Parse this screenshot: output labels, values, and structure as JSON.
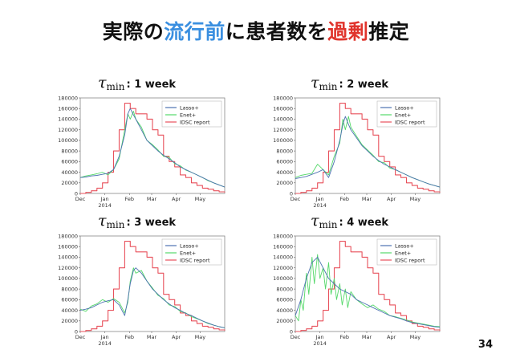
{
  "slide": {
    "title": {
      "part1": "実際の",
      "part2": "流行前",
      "part3": "に患者数を",
      "part4": "過剰",
      "part5": "推定"
    },
    "page_number": "34",
    "symbol": "τ",
    "subscript": "min"
  },
  "colors": {
    "lasso": "#4c72b0",
    "enet": "#55d86a",
    "idsc": "#e8505b",
    "title_blue": "#3a8fe0",
    "title_red": "#e0342c"
  },
  "chart_data": [
    {
      "type": "line",
      "panel_label": ": 1 week",
      "x_tick_labels": [
        "Dec",
        "Jan\n2014",
        "Feb",
        "Mar",
        "Apr",
        "May"
      ],
      "x_range": [
        "2013-12-01",
        "2014-05-31"
      ],
      "y_ticks": [
        0,
        20000,
        40000,
        60000,
        80000,
        100000,
        120000,
        140000,
        160000,
        180000
      ],
      "ylim": [
        0,
        180000
      ],
      "legend": [
        "Lasso+",
        "Enet+",
        "IDSC report"
      ],
      "legend_position": "top-right",
      "series": [
        {
          "name": "Lasso+",
          "x_days": [
            0,
            7,
            14,
            21,
            28,
            35,
            42,
            49,
            56,
            60,
            63,
            67,
            70,
            77,
            84,
            91,
            98,
            105,
            112,
            119,
            126,
            133,
            140,
            147,
            154,
            161,
            168,
            175,
            182
          ],
          "values": [
            30000,
            31000,
            33000,
            34000,
            36000,
            38000,
            45000,
            70000,
            110000,
            150000,
            160000,
            148000,
            140000,
            120000,
            100000,
            90000,
            80000,
            72000,
            65000,
            58000,
            50000,
            45000,
            40000,
            35000,
            30000,
            25000,
            20000,
            16000,
            12000
          ]
        },
        {
          "name": "Enet+",
          "x_days": [
            0,
            7,
            14,
            21,
            28,
            35,
            42,
            49,
            56,
            60,
            63,
            67,
            70,
            77,
            84,
            91,
            98,
            105,
            112,
            119,
            126,
            133,
            140,
            147,
            154,
            161,
            168,
            175,
            182
          ],
          "values": [
            30000,
            33000,
            35000,
            37000,
            40000,
            35000,
            45000,
            65000,
            120000,
            150000,
            140000,
            155000,
            140000,
            125000,
            100000,
            92000,
            82000,
            70000,
            68000,
            56000,
            52000,
            44000,
            40000,
            35000,
            30000,
            24000,
            20000,
            16000,
            12000
          ]
        },
        {
          "name": "IDSC report",
          "x_days": [
            0,
            7,
            14,
            21,
            28,
            35,
            42,
            49,
            56,
            63,
            70,
            77,
            84,
            91,
            98,
            105,
            112,
            119,
            126,
            133,
            140,
            147,
            154,
            161,
            168,
            175,
            182
          ],
          "values": [
            0,
            2000,
            5000,
            10000,
            20000,
            40000,
            80000,
            120000,
            170000,
            160000,
            150000,
            150000,
            140000,
            120000,
            110000,
            70000,
            60000,
            50000,
            35000,
            30000,
            20000,
            15000,
            10000,
            8000,
            5000,
            3000,
            2000
          ]
        }
      ]
    },
    {
      "type": "line",
      "panel_label": ": 2 week",
      "x_tick_labels": [
        "Dec",
        "Jan\n2014",
        "Feb",
        "Mar",
        "Apr",
        "May"
      ],
      "x_range": [
        "2013-12-01",
        "2014-05-31"
      ],
      "y_ticks": [
        0,
        20000,
        40000,
        60000,
        80000,
        100000,
        120000,
        140000,
        160000,
        180000
      ],
      "ylim": [
        0,
        180000
      ],
      "legend": [
        "Lasso+",
        "Enet+",
        "IDSC report"
      ],
      "legend_position": "top-right",
      "series": [
        {
          "name": "Lasso+",
          "x_days": [
            0,
            7,
            14,
            21,
            28,
            35,
            42,
            49,
            56,
            60,
            63,
            67,
            70,
            77,
            84,
            91,
            98,
            105,
            112,
            119,
            126,
            133,
            140,
            147,
            154,
            161,
            168,
            175,
            182
          ],
          "values": [
            28000,
            30000,
            32000,
            36000,
            40000,
            45000,
            30000,
            60000,
            100000,
            130000,
            145000,
            130000,
            120000,
            105000,
            90000,
            80000,
            70000,
            62000,
            55000,
            50000,
            45000,
            40000,
            35000,
            30000,
            26000,
            22000,
            18000,
            15000,
            12000
          ]
        },
        {
          "name": "Enet+",
          "x_days": [
            0,
            7,
            14,
            21,
            28,
            35,
            42,
            49,
            56,
            60,
            63,
            67,
            70,
            77,
            84,
            91,
            98,
            105,
            112,
            119,
            126,
            133,
            140,
            147,
            154,
            161,
            168,
            175,
            182
          ],
          "values": [
            30000,
            34000,
            36000,
            38000,
            55000,
            45000,
            35000,
            70000,
            95000,
            140000,
            120000,
            145000,
            125000,
            108000,
            92000,
            82000,
            72000,
            60000,
            58000,
            48000,
            45000,
            40000,
            35000,
            30000,
            26000,
            22000,
            18000,
            15000,
            12000
          ]
        },
        {
          "name": "IDSC report",
          "x_days": [
            0,
            7,
            14,
            21,
            28,
            35,
            42,
            49,
            56,
            63,
            70,
            77,
            84,
            91,
            98,
            105,
            112,
            119,
            126,
            133,
            140,
            147,
            154,
            161,
            168,
            175,
            182
          ],
          "values": [
            0,
            2000,
            5000,
            10000,
            20000,
            40000,
            80000,
            120000,
            170000,
            160000,
            150000,
            150000,
            140000,
            120000,
            110000,
            70000,
            60000,
            50000,
            35000,
            30000,
            20000,
            15000,
            10000,
            8000,
            5000,
            3000,
            2000
          ]
        }
      ]
    },
    {
      "type": "line",
      "panel_label": ": 3 week",
      "x_tick_labels": [
        "Dec",
        "Jan\n2014",
        "Feb",
        "Mar",
        "Apr",
        "May"
      ],
      "x_range": [
        "2013-12-01",
        "2014-05-31"
      ],
      "y_ticks": [
        0,
        20000,
        40000,
        60000,
        80000,
        100000,
        120000,
        140000,
        160000,
        180000
      ],
      "ylim": [
        0,
        180000
      ],
      "legend": [
        "Lasso+",
        "Enet+",
        "IDSC report"
      ],
      "legend_position": "top-right",
      "series": [
        {
          "name": "Lasso+",
          "x_days": [
            0,
            7,
            14,
            21,
            28,
            35,
            42,
            49,
            56,
            60,
            63,
            67,
            70,
            77,
            84,
            91,
            98,
            105,
            112,
            119,
            126,
            133,
            140,
            147,
            154,
            161,
            168,
            175,
            182
          ],
          "values": [
            40000,
            42000,
            45000,
            50000,
            55000,
            58000,
            60000,
            50000,
            30000,
            60000,
            90000,
            115000,
            120000,
            110000,
            95000,
            80000,
            70000,
            60000,
            52000,
            45000,
            40000,
            34000,
            30000,
            25000,
            20000,
            16000,
            12000,
            9000,
            7000
          ]
        },
        {
          "name": "Enet+",
          "x_days": [
            0,
            7,
            14,
            21,
            28,
            35,
            42,
            49,
            56,
            60,
            63,
            67,
            70,
            77,
            84,
            91,
            98,
            105,
            112,
            119,
            126,
            133,
            140,
            147,
            154,
            161,
            168,
            175,
            182
          ],
          "values": [
            42000,
            38000,
            48000,
            52000,
            60000,
            55000,
            62000,
            55000,
            35000,
            55000,
            95000,
            120000,
            110000,
            115000,
            95000,
            82000,
            68000,
            62000,
            50000,
            47000,
            38000,
            35000,
            28000,
            24000,
            20000,
            15000,
            12000,
            9000,
            7000
          ]
        },
        {
          "name": "IDSC report",
          "x_days": [
            0,
            7,
            14,
            21,
            28,
            35,
            42,
            49,
            56,
            63,
            70,
            77,
            84,
            91,
            98,
            105,
            112,
            119,
            126,
            133,
            140,
            147,
            154,
            161,
            168,
            175,
            182
          ],
          "values": [
            0,
            2000,
            5000,
            10000,
            20000,
            40000,
            80000,
            120000,
            170000,
            160000,
            150000,
            150000,
            140000,
            120000,
            110000,
            70000,
            60000,
            50000,
            35000,
            30000,
            20000,
            15000,
            10000,
            8000,
            5000,
            3000,
            2000
          ]
        }
      ]
    },
    {
      "type": "line",
      "panel_label": ": 4 week",
      "x_tick_labels": [
        "Dec",
        "Jan\n2014",
        "Feb",
        "Mar",
        "Apr",
        "May"
      ],
      "x_range": [
        "2013-12-01",
        "2014-05-31"
      ],
      "y_ticks": [
        0,
        20000,
        40000,
        60000,
        80000,
        100000,
        120000,
        140000,
        160000,
        180000
      ],
      "ylim": [
        0,
        180000
      ],
      "legend": [
        "Lasso+",
        "Enet+",
        "IDSC report"
      ],
      "legend_position": "top-right",
      "series": [
        {
          "name": "Lasso+",
          "x_days": [
            0,
            7,
            14,
            21,
            28,
            35,
            42,
            49,
            56,
            63,
            70,
            77,
            84,
            91,
            98,
            105,
            112,
            119,
            126,
            133,
            140,
            147,
            154,
            161,
            168,
            175,
            182
          ],
          "values": [
            30000,
            60000,
            100000,
            130000,
            140000,
            120000,
            100000,
            90000,
            80000,
            75000,
            70000,
            60000,
            55000,
            50000,
            45000,
            40000,
            35000,
            30000,
            27000,
            24000,
            20000,
            17000,
            15000,
            13000,
            11000,
            9000,
            8000
          ]
        },
        {
          "name": "Enet+",
          "x_days": [
            0,
            4,
            7,
            10,
            14,
            17,
            21,
            24,
            28,
            31,
            35,
            38,
            42,
            45,
            49,
            52,
            56,
            59,
            63,
            66,
            70,
            77,
            84,
            91,
            98,
            105,
            112,
            119,
            126,
            133,
            140,
            147,
            154,
            161,
            168,
            175,
            182
          ],
          "values": [
            30000,
            20000,
            60000,
            40000,
            110000,
            70000,
            140000,
            90000,
            145000,
            100000,
            120000,
            80000,
            130000,
            70000,
            100000,
            60000,
            90000,
            50000,
            80000,
            45000,
            75000,
            60000,
            52000,
            45000,
            50000,
            42000,
            38000,
            30000,
            28000,
            25000,
            22000,
            18000,
            16000,
            14000,
            12000,
            10000,
            9000
          ]
        },
        {
          "name": "IDSC report",
          "x_days": [
            0,
            7,
            14,
            21,
            28,
            35,
            42,
            49,
            56,
            63,
            70,
            77,
            84,
            91,
            98,
            105,
            112,
            119,
            126,
            133,
            140,
            147,
            154,
            161,
            168,
            175,
            182
          ],
          "values": [
            0,
            2000,
            5000,
            10000,
            20000,
            40000,
            80000,
            120000,
            170000,
            160000,
            150000,
            150000,
            140000,
            120000,
            110000,
            70000,
            60000,
            50000,
            35000,
            30000,
            20000,
            15000,
            10000,
            8000,
            5000,
            3000,
            2000
          ]
        }
      ]
    }
  ]
}
